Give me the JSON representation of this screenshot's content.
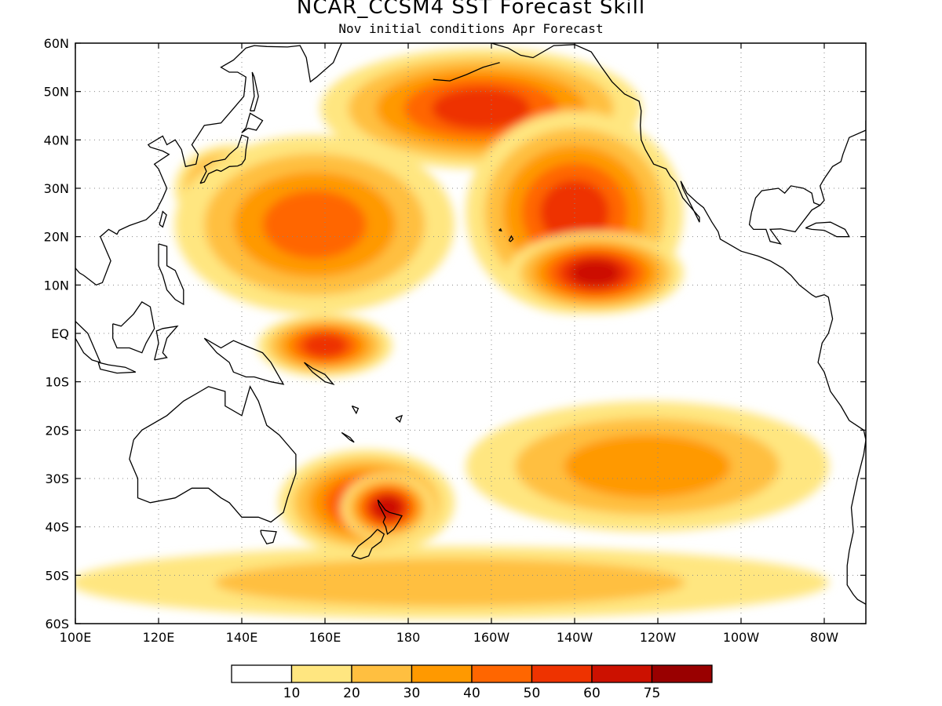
{
  "title": "NCAR_CCSM4 SST Forecast Skill",
  "subtitle": "Nov initial conditions  Apr Forecast",
  "map": {
    "lon_range": [
      100,
      290
    ],
    "lat_range": [
      -60,
      60
    ],
    "lat_ticks": [
      "60N",
      "50N",
      "40N",
      "30N",
      "20N",
      "10N",
      "EQ",
      "10S",
      "20S",
      "30S",
      "40S",
      "50S",
      "60S"
    ],
    "lon_ticks": [
      "100E",
      "120E",
      "140E",
      "160E",
      "180",
      "160W",
      "140W",
      "120W",
      "100W",
      "80W"
    ],
    "gridlines": "dotted"
  },
  "colorbar": {
    "colors": [
      "#ffffff",
      "#ffe680",
      "#ffbf40",
      "#ff9900",
      "#ff6600",
      "#ee3300",
      "#cc1100",
      "#990000"
    ],
    "labels": [
      "10",
      "20",
      "30",
      "40",
      "50",
      "60",
      "75"
    ]
  },
  "skill_regions": [
    {
      "name": "north-pacific-arc",
      "lon": [
        160,
        235
      ],
      "lat": [
        35,
        58
      ],
      "level": 5
    },
    {
      "name": "kuroshio",
      "lon": [
        125,
        150
      ],
      "lat": [
        22,
        38
      ],
      "level": 5
    },
    {
      "name": "northwest-pacific",
      "lon": [
        125,
        190
      ],
      "lat": [
        5,
        40
      ],
      "level": 4
    },
    {
      "name": "northeast-pacific",
      "lon": [
        195,
        245
      ],
      "lat": [
        5,
        45
      ],
      "level": 5
    },
    {
      "name": "east-central-pacific",
      "lon": [
        205,
        245
      ],
      "lat": [
        5,
        20
      ],
      "level": 6
    },
    {
      "name": "maritime-continent-east",
      "lon": [
        145,
        175
      ],
      "lat": [
        -8,
        3
      ],
      "level": 5
    },
    {
      "name": "southwest-pacific",
      "lon": [
        150,
        190
      ],
      "lat": [
        -45,
        -25
      ],
      "level": 5
    },
    {
      "name": "tasman-new-zealand",
      "lon": [
        165,
        185
      ],
      "lat": [
        -42,
        -30
      ],
      "level": 6
    },
    {
      "name": "south-pacific-band",
      "lon": [
        195,
        280
      ],
      "lat": [
        -40,
        -15
      ],
      "level": 3
    },
    {
      "name": "southern-ocean",
      "lon": [
        100,
        280
      ],
      "lat": [
        -58,
        -45
      ],
      "level": 2
    }
  ]
}
